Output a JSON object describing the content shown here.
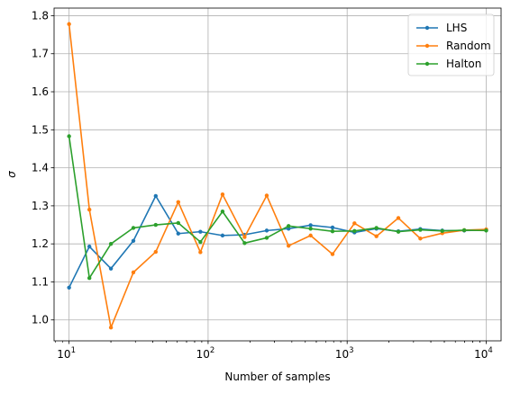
{
  "chart_data": {
    "type": "line",
    "xscale": "log",
    "xlim": [
      7.8,
      12800
    ],
    "ylim": [
      0.945,
      1.82
    ],
    "xlabel": "Number of samples",
    "ylabel": "σ",
    "grid": true,
    "legend_position": "top-right",
    "x_ticks": [
      {
        "value": 10,
        "base": "10",
        "exp": "1"
      },
      {
        "value": 100,
        "base": "10",
        "exp": "2"
      },
      {
        "value": 1000,
        "base": "10",
        "exp": "3"
      },
      {
        "value": 10000,
        "base": "10",
        "exp": "4"
      }
    ],
    "y_ticks": [
      {
        "value": 1.0,
        "label": "1.0"
      },
      {
        "value": 1.1,
        "label": "1.1"
      },
      {
        "value": 1.2,
        "label": "1.2"
      },
      {
        "value": 1.3,
        "label": "1.3"
      },
      {
        "value": 1.4,
        "label": "1.4"
      },
      {
        "value": 1.5,
        "label": "1.5"
      },
      {
        "value": 1.6,
        "label": "1.6"
      },
      {
        "value": 1.7,
        "label": "1.7"
      },
      {
        "value": 1.8,
        "label": "1.8"
      }
    ],
    "x": [
      10,
      14,
      20,
      29,
      42,
      61,
      88,
      127,
      183,
      264,
      379,
      546,
      785,
      1129,
      1624,
      2336,
      3360,
      4833,
      6952,
      10000
    ],
    "series": [
      {
        "name": "LHS",
        "color": "#1f77b4",
        "values": [
          1.085,
          1.193,
          1.135,
          1.208,
          1.326,
          1.227,
          1.232,
          1.222,
          1.224,
          1.235,
          1.24,
          1.249,
          1.243,
          1.23,
          1.24,
          1.233,
          1.239,
          1.235,
          1.235,
          1.236
        ]
      },
      {
        "name": "Random",
        "color": "#ff7f0e",
        "values": [
          1.778,
          1.29,
          0.98,
          1.125,
          1.179,
          1.31,
          1.178,
          1.33,
          1.218,
          1.327,
          1.195,
          1.222,
          1.173,
          1.254,
          1.22,
          1.268,
          1.214,
          1.228,
          1.236,
          1.238
        ]
      },
      {
        "name": "Halton",
        "color": "#2ca02c",
        "values": [
          1.483,
          1.11,
          1.2,
          1.242,
          1.25,
          1.255,
          1.205,
          1.285,
          1.202,
          1.216,
          1.247,
          1.24,
          1.233,
          1.234,
          1.242,
          1.232,
          1.237,
          1.234,
          1.236,
          1.235
        ]
      }
    ]
  }
}
